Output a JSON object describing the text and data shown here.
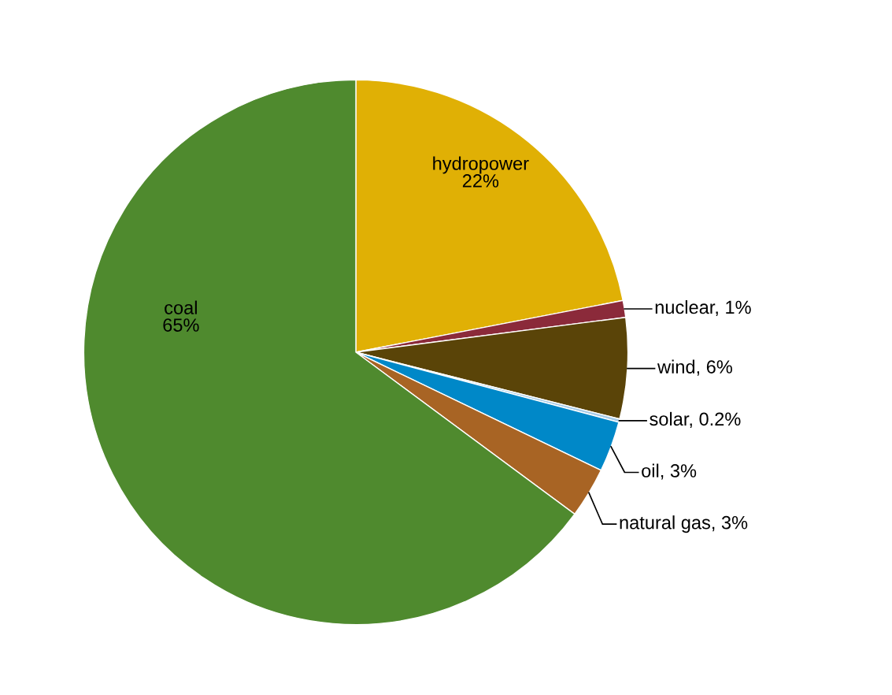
{
  "chart_data": {
    "type": "pie",
    "categories": [
      "hydropower",
      "nuclear",
      "wind",
      "solar",
      "oil",
      "natural gas",
      "coal"
    ],
    "values": [
      22,
      1,
      6,
      0.2,
      3,
      3,
      65
    ],
    "value_labels": [
      "22%",
      "1%",
      "6%",
      "0.2%",
      "3%",
      "3%",
      "65%"
    ],
    "colors": [
      "#e0b005",
      "#8b2a3a",
      "#5a4408",
      "#a8cce8",
      "#0088c8",
      "#a86424",
      "#4f8a2e"
    ],
    "legend": false
  }
}
